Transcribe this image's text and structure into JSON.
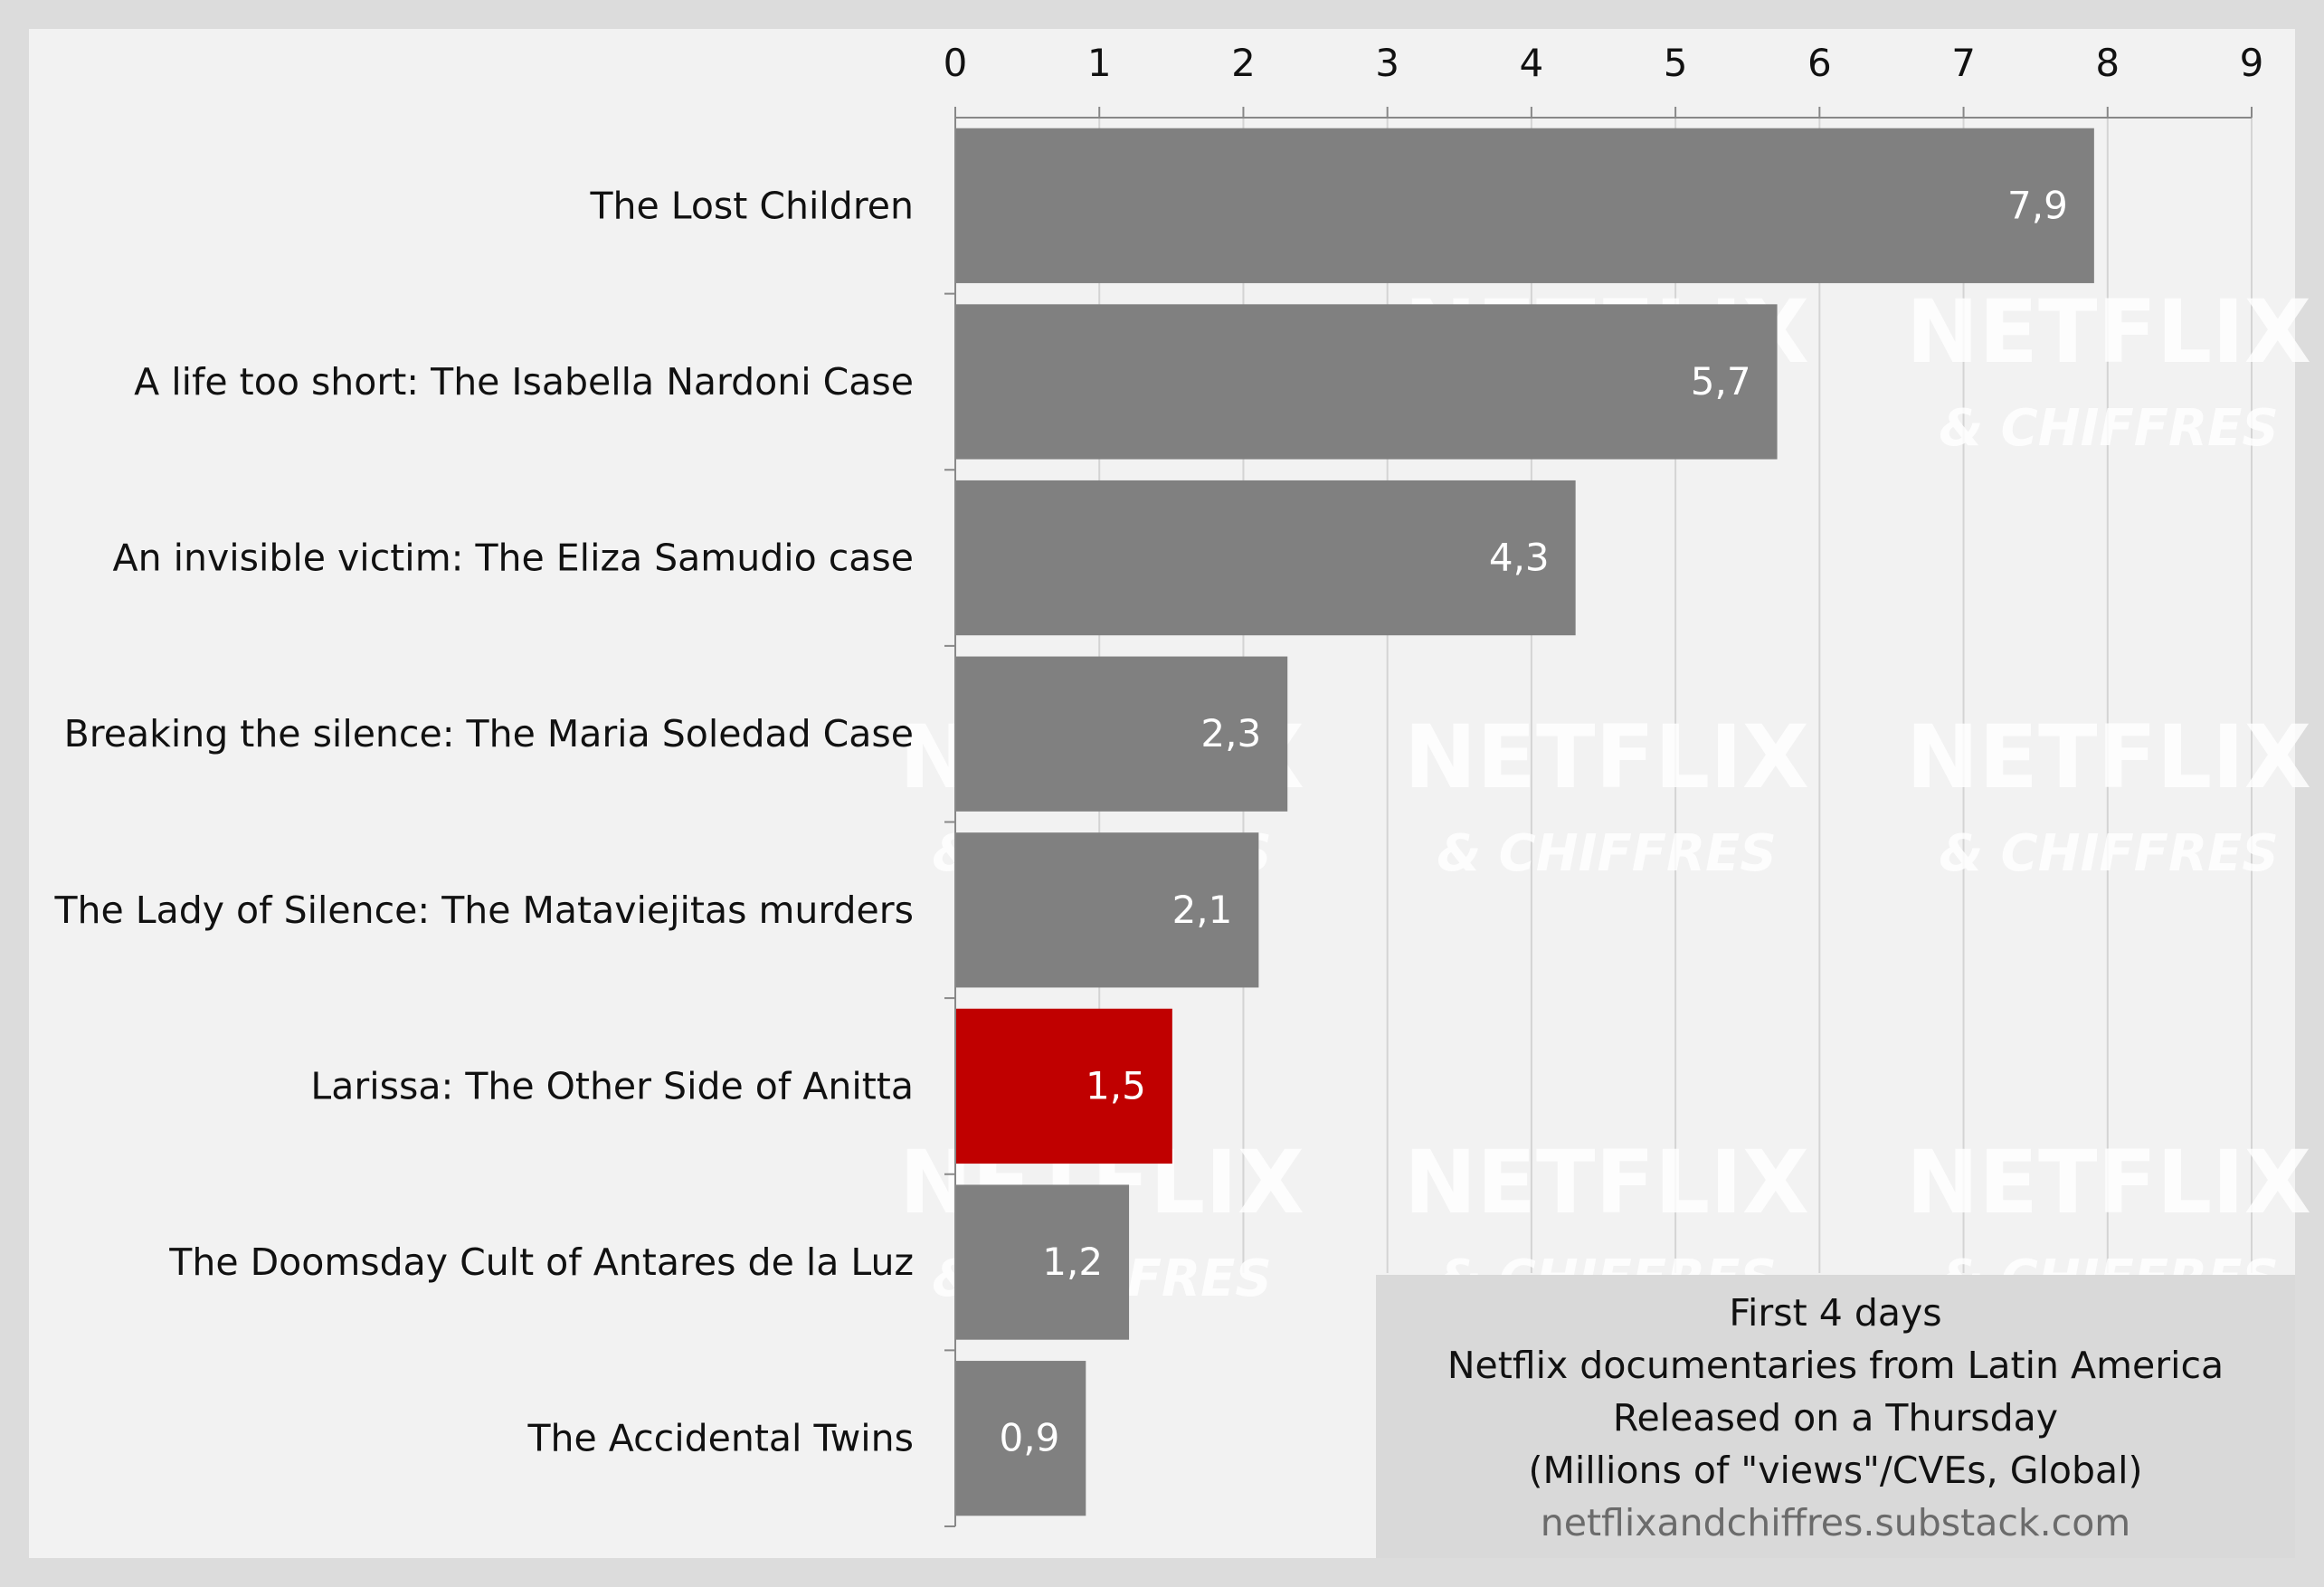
{
  "chart_data": {
    "type": "bar",
    "orientation": "horizontal",
    "categories": [
      "The Lost Children",
      "A life too short: The Isabella Nardoni Case",
      "An invisible victim: The Eliza Samudio case",
      "Breaking the silence: The Maria Soledad Case",
      "The Lady of Silence: The Mataviejitas murders",
      "Larissa: The Other Side of Anitta",
      "The Doomsday Cult of Antares de la Luz",
      "The Accidental Twins"
    ],
    "values": [
      7.9,
      5.7,
      4.3,
      2.3,
      2.1,
      1.5,
      1.2,
      0.9
    ],
    "value_labels": [
      "7,9",
      "5,7",
      "4,3",
      "2,3",
      "2,1",
      "1,5",
      "1,2",
      "0,9"
    ],
    "x_ticks": [
      "0",
      "1",
      "2",
      "3",
      "4",
      "5",
      "6",
      "7",
      "8",
      "9"
    ],
    "xlim": [
      0,
      9
    ],
    "x_axis_position": "top",
    "grid": true,
    "bar_color": "#808080",
    "highlight_color": "#c00000",
    "highlight_index": 5,
    "title_lines": [
      "First 4 days",
      "Netflix documentaries from Latin America",
      "Released on a Thursday",
      "(Millions of \"views\"/CVEs, Global)"
    ],
    "source": "netflixandchiffres.substack.com",
    "watermark": {
      "line1": "NETFLIX",
      "line2": "& CHIFFRES"
    }
  }
}
